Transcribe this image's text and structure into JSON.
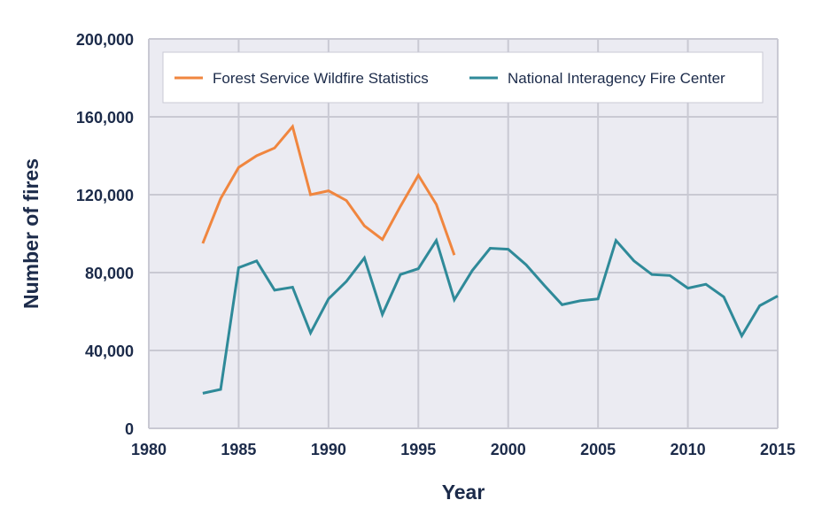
{
  "chart_data": {
    "type": "line",
    "title": "",
    "xlabel": "Year",
    "ylabel": "Number of fires",
    "xlim": [
      1980,
      2015
    ],
    "ylim": [
      0,
      200000
    ],
    "x_ticks": [
      1980,
      1985,
      1990,
      1995,
      2000,
      2005,
      2010,
      2015
    ],
    "x_tick_labels": [
      "1980",
      "1985",
      "1990",
      "1995",
      "2000",
      "2005",
      "2010",
      "2015"
    ],
    "y_ticks": [
      0,
      40000,
      80000,
      120000,
      160000,
      200000
    ],
    "y_tick_labels": [
      "0",
      "40,000",
      "80,000",
      "120,000",
      "160,000",
      "200,000"
    ],
    "grid": true,
    "legend_position": "top",
    "series": [
      {
        "name": "Forest Service Wildfire Statistics",
        "color": "#f0863f",
        "x": [
          1983,
          1984,
          1985,
          1986,
          1987,
          1988,
          1989,
          1990,
          1991,
          1992,
          1993,
          1994,
          1995,
          1996,
          1997
        ],
        "values": [
          95000,
          118000,
          134000,
          140000,
          144000,
          155000,
          120000,
          122000,
          117000,
          104000,
          97000,
          114000,
          130000,
          115000,
          89000
        ]
      },
      {
        "name": "National Interagency Fire Center",
        "color": "#2f8a99",
        "x": [
          1983,
          1984,
          1985,
          1986,
          1987,
          1988,
          1989,
          1990,
          1991,
          1992,
          1993,
          1994,
          1995,
          1996,
          1997,
          1998,
          1999,
          2000,
          2001,
          2002,
          2003,
          2004,
          2005,
          2006,
          2007,
          2008,
          2009,
          2010,
          2011,
          2012,
          2013,
          2014,
          2015
        ],
        "values": [
          18000,
          20000,
          82500,
          86000,
          71000,
          72500,
          49000,
          66500,
          75500,
          87500,
          58500,
          79000,
          82000,
          96500,
          66000,
          81000,
          92500,
          92000,
          84000,
          73500,
          63500,
          65500,
          66500,
          96500,
          86000,
          79000,
          78500,
          72000,
          74000,
          67500,
          47500,
          63000,
          68000
        ]
      }
    ]
  }
}
